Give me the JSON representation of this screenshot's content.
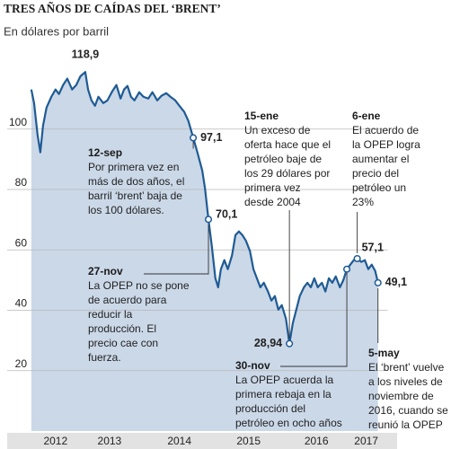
{
  "chart_data": {
    "type": "area",
    "title": "TRES AÑOS DE CAÍDAS DEL ‘BRENT’",
    "subtitle": "En dólares por barril",
    "x": [
      2012.35,
      2012.39,
      2012.44,
      2012.48,
      2012.52,
      2012.57,
      2012.64,
      2012.7,
      2012.75,
      2012.81,
      2012.87,
      2012.94,
      2013.0,
      2013.06,
      2013.13,
      2013.17,
      2013.22,
      2013.27,
      2013.32,
      2013.39,
      2013.45,
      2013.52,
      2013.58,
      2013.64,
      2013.69,
      2013.74,
      2013.79,
      2013.84,
      2013.91,
      2013.97,
      2014.04,
      2014.1,
      2014.17,
      2014.23,
      2014.3,
      2014.36,
      2014.43,
      2014.49,
      2014.56,
      2014.62,
      2014.69,
      2014.75,
      2014.82,
      2014.86,
      2014.91,
      2014.96,
      2015.01,
      2015.05,
      2015.09,
      2015.14,
      2015.19,
      2015.25,
      2015.3,
      2015.35,
      2015.4,
      2015.45,
      2015.51,
      2015.56,
      2015.61,
      2015.66,
      2015.71,
      2015.77,
      2015.82,
      2015.87,
      2015.92,
      2015.97,
      2016.03,
      2016.08,
      2016.13,
      2016.18,
      2016.23,
      2016.29,
      2016.34,
      2016.39,
      2016.44,
      2016.49,
      2016.55,
      2016.6,
      2016.65,
      2016.7,
      2016.75,
      2016.81,
      2016.86,
      2016.91,
      2016.96,
      2017.01,
      2017.06,
      2017.12,
      2017.17,
      2017.22,
      2017.27,
      2017.32,
      2017.36
    ],
    "series": [
      {
        "color": "#1f5b94",
        "fill": "#cbd8e8",
        "values": [
          113.1,
          108.6,
          98.2,
          92.3,
          101.2,
          107.1,
          110.7,
          113.1,
          111.6,
          114.6,
          116.7,
          113.1,
          114.6,
          117.5,
          118.9,
          113.1,
          109.5,
          107.7,
          110.7,
          108.6,
          109.5,
          112.5,
          114.6,
          110.1,
          113.1,
          114.3,
          110.7,
          109.5,
          112.2,
          110.7,
          110.1,
          112.2,
          109.5,
          111.0,
          111.9,
          110.7,
          109.5,
          107.7,
          105.7,
          102.7,
          97.1,
          92.3,
          86.3,
          80.4,
          70.1,
          61.0,
          50.6,
          47.6,
          53.6,
          56.6,
          53.6,
          58.1,
          64.9,
          66.1,
          64.9,
          63.1,
          59.6,
          53.6,
          50.6,
          47.6,
          49.1,
          46.2,
          43.2,
          44.7,
          40.2,
          41.7,
          37.2,
          28.94,
          35.8,
          40.2,
          44.7,
          47.6,
          49.1,
          47.6,
          50.6,
          47.6,
          49.1,
          46.2,
          50.6,
          49.1,
          51.2,
          47.6,
          50.0,
          53.6,
          55.1,
          56.6,
          57.1,
          56.0,
          56.6,
          53.6,
          55.1,
          53.0,
          49.1
        ],
        "value_labels": [
          null,
          null,
          null,
          null,
          null,
          null,
          null,
          null,
          null,
          null,
          null,
          null,
          null,
          null,
          "118,9",
          null,
          null,
          null,
          null,
          null,
          null,
          null,
          null,
          null,
          null,
          null,
          null,
          null,
          null,
          null,
          null,
          null,
          null,
          null,
          null,
          null,
          null,
          null,
          null,
          null,
          "97,1",
          null,
          null,
          null,
          "70,1",
          null,
          null,
          null,
          null,
          null,
          null,
          null,
          null,
          null,
          null,
          null,
          null,
          null,
          null,
          null,
          null,
          null,
          null,
          null,
          null,
          null,
          null,
          "28,94",
          null,
          null,
          null,
          null,
          null,
          null,
          null,
          null,
          null,
          null,
          null,
          null,
          null,
          null,
          null,
          null,
          null,
          null,
          "57,1",
          null,
          null,
          null,
          null,
          null,
          "49,1"
        ]
      }
    ],
    "xlim": [
      2012.3,
      2017.5
    ],
    "xticks": [
      {
        "value": 2012.7,
        "label": "2012"
      },
      {
        "value": 2013.48,
        "label": "2013"
      },
      {
        "value": 2014.49,
        "label": "2014"
      },
      {
        "value": 2015.49,
        "label": "2015"
      },
      {
        "value": 2016.47,
        "label": "2016"
      },
      {
        "value": 2017.19,
        "label": "2017"
      }
    ],
    "ylim": [
      0,
      126
    ],
    "yticks": [
      20,
      40,
      60,
      80,
      100
    ],
    "grid": true,
    "annotations": [
      {
        "date": "12-sep",
        "lines": [
          "Por primera vez en",
          "más de dos años, el",
          "barril ‘brent’ baja de",
          "los 100 dólares."
        ]
      },
      {
        "date": "27-nov",
        "lines": [
          "La OPEP no se pone",
          "de acuerdo para",
          "reducir la",
          "producción. El",
          "precio cae con",
          "fuerza."
        ]
      },
      {
        "date": "15-ene",
        "lines": [
          "Un exceso de",
          "oferta hace que el",
          "petróleo baje de",
          "los 29 dólares por",
          "primera vez",
          "desde 2004"
        ]
      },
      {
        "date": "6-ene",
        "lines": [
          "El acuerdo de",
          "la OPEP logra",
          "aumentar el",
          "precio del",
          "petróleo un",
          "23%"
        ]
      },
      {
        "date": "30-nov",
        "lines": [
          "La OPEP acuerda la",
          "primera rebaja en la",
          "producción del",
          "petróleo en ocho años"
        ]
      },
      {
        "date": "5-may",
        "lines": [
          "El ‘brent’ vuelve",
          "a los niveles de",
          "noviembre de",
          "2016, cuando se",
          "reunió la OPEP"
        ]
      }
    ]
  }
}
